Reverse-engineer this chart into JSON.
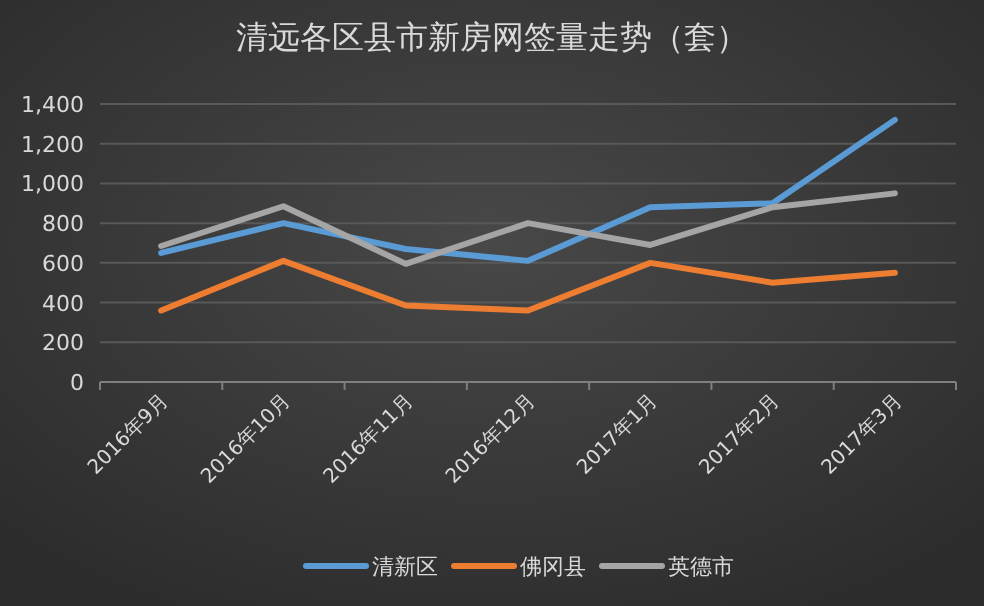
{
  "chart_data": {
    "type": "line",
    "title": "清远各区县市新房网签量走势（套）",
    "categories": [
      "2016年9月",
      "2016年10月",
      "2016年11月",
      "2016年12月",
      "2017年1月",
      "2017年2月",
      "2017年3月"
    ],
    "series": [
      {
        "name": "清新区",
        "color": "#5b9bd5",
        "values": [
          650,
          800,
          670,
          610,
          880,
          900,
          1320
        ]
      },
      {
        "name": "佛冈县",
        "color": "#ed7d31",
        "values": [
          360,
          610,
          385,
          360,
          600,
          500,
          550
        ]
      },
      {
        "name": "英德市",
        "color": "#a5a5a5",
        "values": [
          685,
          885,
          595,
          800,
          690,
          880,
          950
        ]
      }
    ],
    "ylim": [
      0,
      1400
    ],
    "yticks": [
      {
        "value": 0,
        "label": "0"
      },
      {
        "value": 200,
        "label": "200"
      },
      {
        "value": 400,
        "label": "400"
      },
      {
        "value": 600,
        "label": "600"
      },
      {
        "value": 800,
        "label": "800"
      },
      {
        "value": 1000,
        "label": "1,000"
      },
      {
        "value": 1200,
        "label": "1,200"
      },
      {
        "value": 1400,
        "label": "1,400"
      }
    ],
    "grid": "y",
    "legend": "bottom",
    "marker": "none",
    "line_style": "solid"
  }
}
